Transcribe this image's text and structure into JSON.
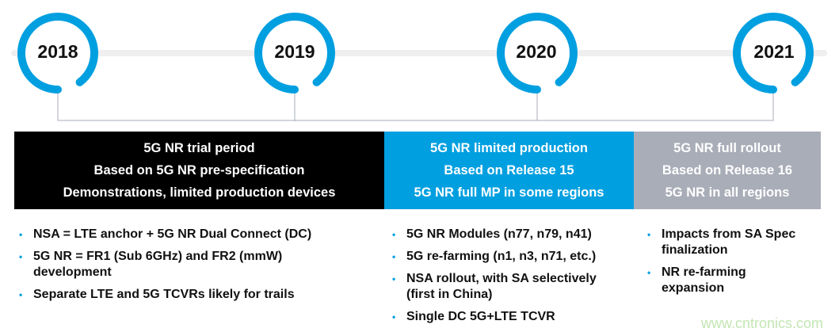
{
  "colors": {
    "accent": "#009fe0",
    "dark": "#000000",
    "muted": "#a9adb8",
    "track": "#efefef",
    "watermark": "#c3e6b3"
  },
  "years": [
    "2018",
    "2019",
    "2020",
    "2021"
  ],
  "phases": [
    {
      "lines": [
        "5G NR trial period",
        "Based on 5G NR pre-specification",
        "Demonstrations, limited production devices"
      ]
    },
    {
      "lines": [
        "5G NR limited production",
        "Based on Release 15",
        "5G NR full MP in some regions"
      ]
    },
    {
      "lines": [
        "5G NR full rollout",
        "Based on Release 16",
        "5G NR in all regions"
      ]
    }
  ],
  "bullets": [
    [
      "NSA = LTE anchor + 5G NR Dual Connect (DC)",
      "5G NR = FR1 (Sub 6GHz) and FR2 (mmW) development",
      "Separate LTE and 5G TCVRs likely for trails"
    ],
    [
      "5G NR Modules (n77, n79, n41)",
      "5G re-farming (n1, n3, n71, etc.)",
      "NSA rollout, with SA selectively (first in China)",
      "Single DC 5G+LTE TCVR"
    ],
    [
      "Impacts from SA Spec finalization",
      "NR re-farming expansion"
    ]
  ],
  "watermark": "www.cntronics.com"
}
